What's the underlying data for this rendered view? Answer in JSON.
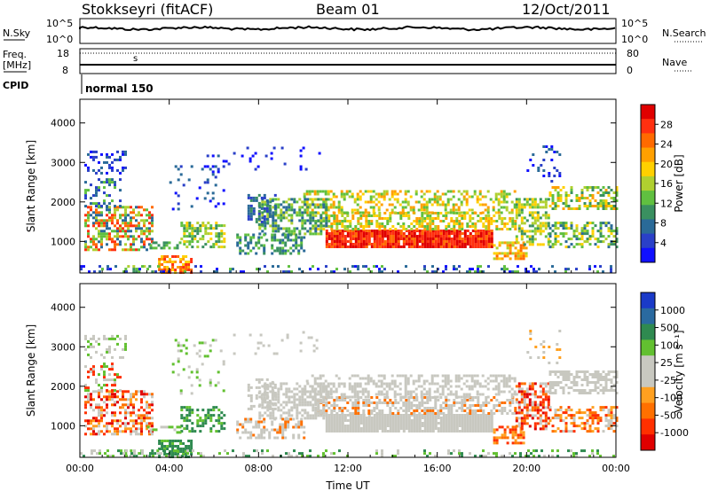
{
  "header": {
    "station": "Stokkseyri (fitACF)",
    "beam": "Beam 01",
    "date": "12/Oct/2011"
  },
  "status_panels": {
    "nsky_label": "N.Sky",
    "nsky_ticks": [
      "10^5",
      "10^0"
    ],
    "nsearch_label": "N.Search",
    "nsearch_ticks": [
      "10^5",
      "10^0"
    ],
    "freq_label": "Freq.",
    "freq_unit": "[MHz]",
    "freq_ticks": [
      "18",
      "8"
    ],
    "nave_label": "Nave",
    "nave_ticks": [
      "80",
      "0"
    ],
    "cpid_label": "CPID",
    "cpid_value": "normal 150"
  },
  "colorbars": {
    "power": {
      "label": "Power [dB]",
      "ticks": [
        "28",
        "24",
        "20",
        "16",
        "12",
        "8",
        "4"
      ],
      "colors": [
        "#e00000",
        "#ff3010",
        "#ff6a00",
        "#ffa000",
        "#ffd000",
        "#b0d030",
        "#60c040",
        "#3a9060",
        "#2a6a98",
        "#2a40c8",
        "#1010ff"
      ]
    },
    "velocity": {
      "label": "Velocity [m s⁻¹]",
      "ticks": [
        "1000",
        "500",
        "100",
        "25",
        "-25",
        "-100",
        "-500",
        "-1000"
      ],
      "colors": [
        "#1a3ac8",
        "#2a6aa0",
        "#2f8a50",
        "#62c030",
        "#c8c8c0",
        "#c8c8c0",
        "#ffa020",
        "#ff7000",
        "#ff3000",
        "#e00000"
      ]
    }
  },
  "chart_data": [
    {
      "type": "heatmap",
      "name": "power",
      "ylabel": "Slant Range [km]",
      "ylim": [
        200,
        4600
      ],
      "yticks": [
        "4000",
        "3000",
        "2000",
        "1000"
      ],
      "xlim": [
        "00:00",
        "24:00"
      ],
      "colorbar_range": [
        0,
        32
      ],
      "colorbar_unit": "dB"
    },
    {
      "type": "heatmap",
      "name": "velocity",
      "ylabel": "Slant Range [km]",
      "ylim": [
        200,
        4600
      ],
      "yticks": [
        "4000",
        "3000",
        "2000",
        "1000"
      ],
      "xlabel": "Time UT",
      "xticks": [
        "00:00",
        "04:00",
        "08:00",
        "12:00",
        "16:00",
        "20:00",
        "00:00"
      ],
      "xlim": [
        "00:00",
        "24:00"
      ],
      "colorbar_range": [
        -1000,
        1000
      ],
      "colorbar_unit": "m s⁻¹"
    }
  ]
}
